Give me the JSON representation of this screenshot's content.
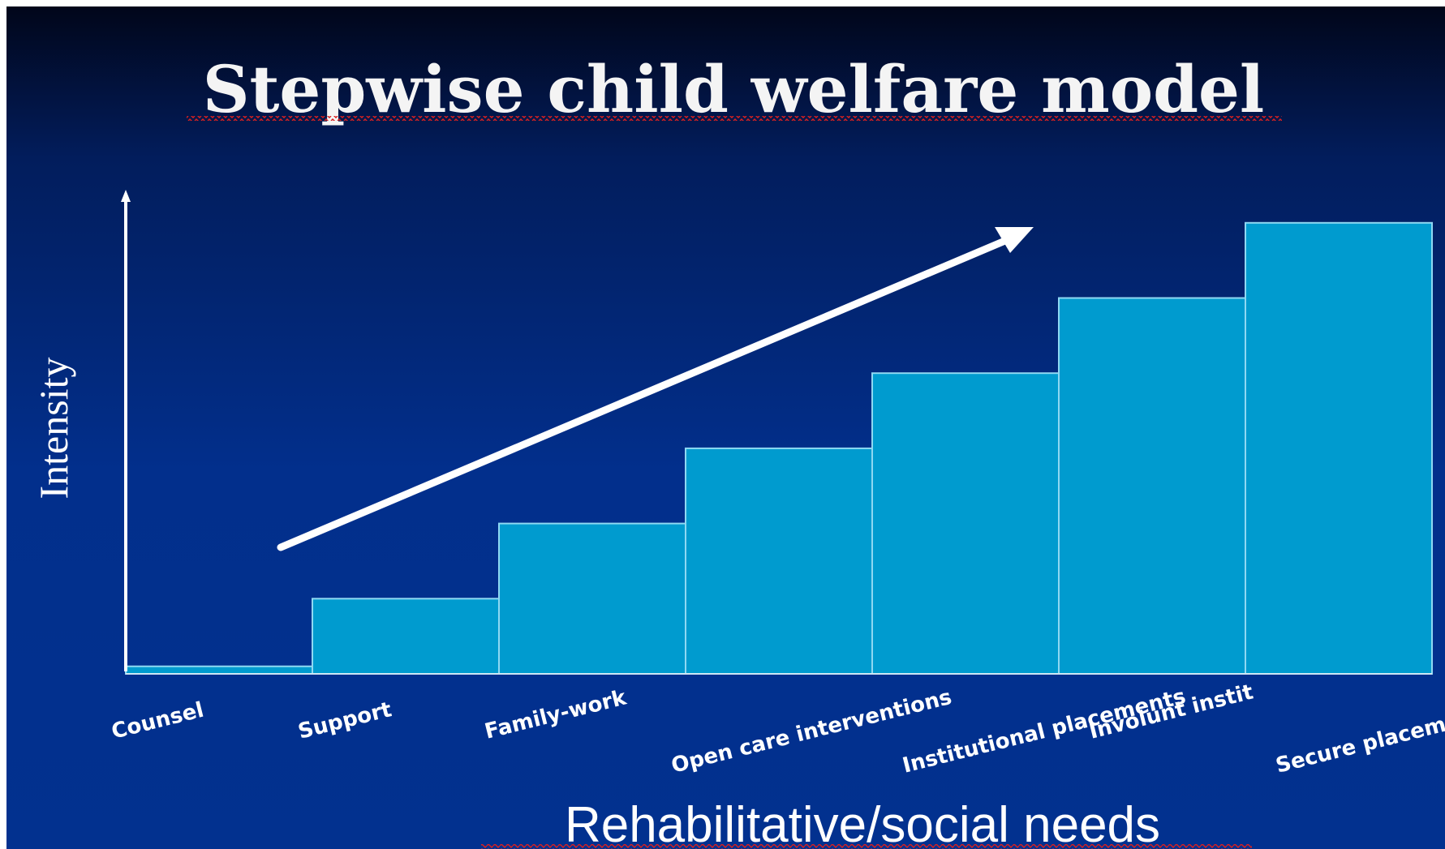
{
  "colors": {
    "bar_fill": "#009bcf",
    "bar_stroke": "#8fd8f2",
    "axis": "#ffffff",
    "arrow": "#ffffff",
    "text": "#ffffff",
    "underline": "#d92020"
  },
  "chart_data": {
    "type": "bar",
    "title": "Stepwise child welfare model",
    "ylabel": "Intensity",
    "xlabel": "Rehabilitative/social needs",
    "categories": [
      "Counsel",
      "Support",
      "Family-work",
      "Open care interventions",
      "Institutional placements",
      "Involunt instit",
      "Secure placements"
    ],
    "values": [
      0.15,
      1.5,
      3,
      4.5,
      6,
      7.5,
      9
    ],
    "ylim": [
      0,
      10
    ],
    "grid": false,
    "annotations": [
      {
        "type": "arrow",
        "meaning": "increasing intensity trend"
      }
    ]
  }
}
